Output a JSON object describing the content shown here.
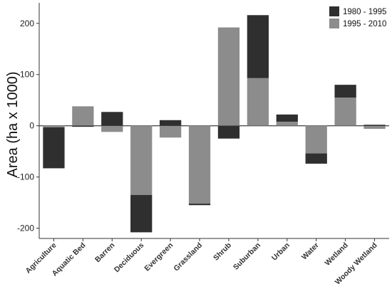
{
  "chart_data": {
    "type": "bar",
    "stacked": true,
    "title": "",
    "xlabel": "",
    "ylabel": "Area (ha x 1000)",
    "ylim": [
      -220,
      240
    ],
    "yticks": [
      -200,
      -100,
      0,
      100,
      200
    ],
    "grid": false,
    "legend_position": "top-right",
    "categories": [
      "Agriculture",
      "Aquatic Bed",
      "Barren",
      "Deciduous",
      "Evergreen",
      "Grassland",
      "Shrub",
      "Suburban",
      "Urban",
      "Water",
      "Wetland",
      "Woody Wetland"
    ],
    "series": [
      {
        "name": "1980 - 1995",
        "color": "#2f2f2f",
        "values": [
          -80,
          -2,
          27,
          -73,
          11,
          -3,
          -25,
          123,
          14,
          -20,
          25,
          2
        ]
      },
      {
        "name": "1995 - 2010",
        "color": "#8c8c8c",
        "values": [
          -3,
          38,
          -12,
          -135,
          -23,
          -152,
          192,
          93,
          8,
          -54,
          55,
          -6
        ]
      }
    ]
  }
}
